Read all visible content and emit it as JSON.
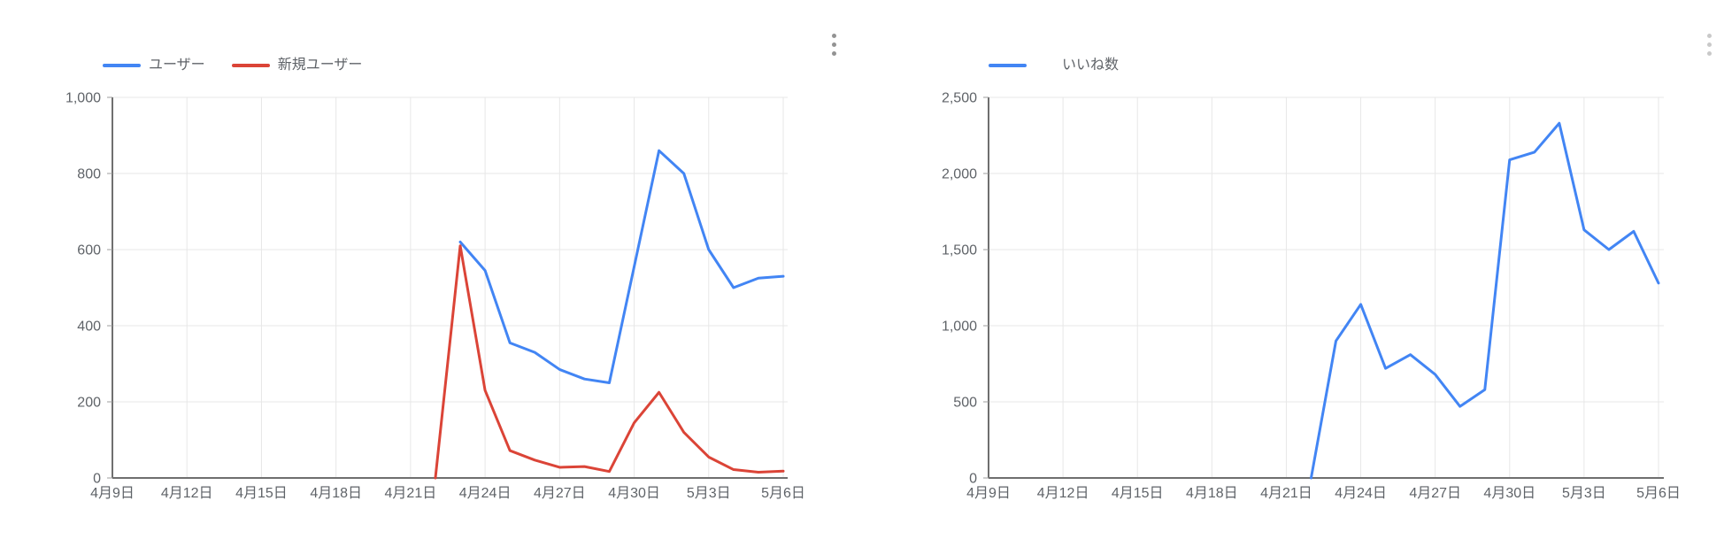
{
  "icons": {
    "chart_menu": "vertical-ellipsis"
  },
  "chart_data": [
    {
      "id": "users-chart",
      "type": "line",
      "title": "",
      "legend_position": "top",
      "grid": true,
      "x_domain": [
        "4月9日",
        "4月10日",
        "4月11日",
        "4月12日",
        "4月13日",
        "4月14日",
        "4月15日",
        "4月16日",
        "4月17日",
        "4月18日",
        "4月19日",
        "4月20日",
        "4月21日",
        "4月22日",
        "4月23日",
        "4月24日",
        "4月25日",
        "4月26日",
        "4月27日",
        "4月28日",
        "4月29日",
        "4月30日",
        "5月1日",
        "5月2日",
        "5月3日",
        "5月4日",
        "5月5日",
        "5月6日"
      ],
      "x_tick_days": [
        0,
        3,
        6,
        9,
        12,
        15,
        18,
        21,
        24,
        27
      ],
      "x_tick_labels": [
        "4月9日",
        "4月12日",
        "4月15日",
        "4月18日",
        "4月21日",
        "4月24日",
        "4月27日",
        "4月30日",
        "5月3日",
        "5月6日"
      ],
      "ylim": [
        0,
        1000
      ],
      "y_ticks": [
        0,
        200,
        400,
        600,
        800,
        1000
      ],
      "y_tick_labels": [
        "0",
        "200",
        "400",
        "600",
        "800",
        "1,000"
      ],
      "series": [
        {
          "name": "ユーザー",
          "color": "#4285F4",
          "values": [
            null,
            null,
            null,
            null,
            null,
            null,
            null,
            null,
            null,
            null,
            null,
            null,
            null,
            null,
            620,
            545,
            355,
            330,
            285,
            260,
            250,
            555,
            860,
            800,
            600,
            500,
            525,
            530
          ]
        },
        {
          "name": "新規ユーザー",
          "color": "#DB4437",
          "values": [
            null,
            null,
            null,
            null,
            null,
            null,
            null,
            null,
            null,
            null,
            null,
            null,
            null,
            0,
            610,
            230,
            72,
            47,
            28,
            30,
            17,
            145,
            225,
            120,
            55,
            22,
            15,
            18
          ]
        }
      ]
    },
    {
      "id": "likes-chart",
      "type": "line",
      "title": "",
      "legend_position": "top",
      "grid": true,
      "x_domain": [
        "4月9日",
        "4月10日",
        "4月11日",
        "4月12日",
        "4月13日",
        "4月14日",
        "4月15日",
        "4月16日",
        "4月17日",
        "4月18日",
        "4月19日",
        "4月20日",
        "4月21日",
        "4月22日",
        "4月23日",
        "4月24日",
        "4月25日",
        "4月26日",
        "4月27日",
        "4月28日",
        "4月29日",
        "4月30日",
        "5月1日",
        "5月2日",
        "5月3日",
        "5月4日",
        "5月5日",
        "5月6日"
      ],
      "x_tick_days": [
        0,
        3,
        6,
        9,
        12,
        15,
        18,
        21,
        24,
        27
      ],
      "x_tick_labels": [
        "4月9日",
        "4月12日",
        "4月15日",
        "4月18日",
        "4月21日",
        "4月24日",
        "4月27日",
        "4月30日",
        "5月3日",
        "5月6日"
      ],
      "ylim": [
        0,
        2500
      ],
      "y_ticks": [
        0,
        500,
        1000,
        1500,
        2000,
        2500
      ],
      "y_tick_labels": [
        "0",
        "500",
        "1,000",
        "1,500",
        "2,000",
        "2,500"
      ],
      "series": [
        {
          "name": "いいね数",
          "color": "#4285F4",
          "values": [
            null,
            null,
            null,
            null,
            null,
            null,
            null,
            null,
            null,
            null,
            null,
            null,
            null,
            0,
            900,
            1140,
            720,
            810,
            680,
            470,
            580,
            2090,
            2140,
            2330,
            1630,
            1500,
            1620,
            1280
          ]
        }
      ]
    }
  ]
}
